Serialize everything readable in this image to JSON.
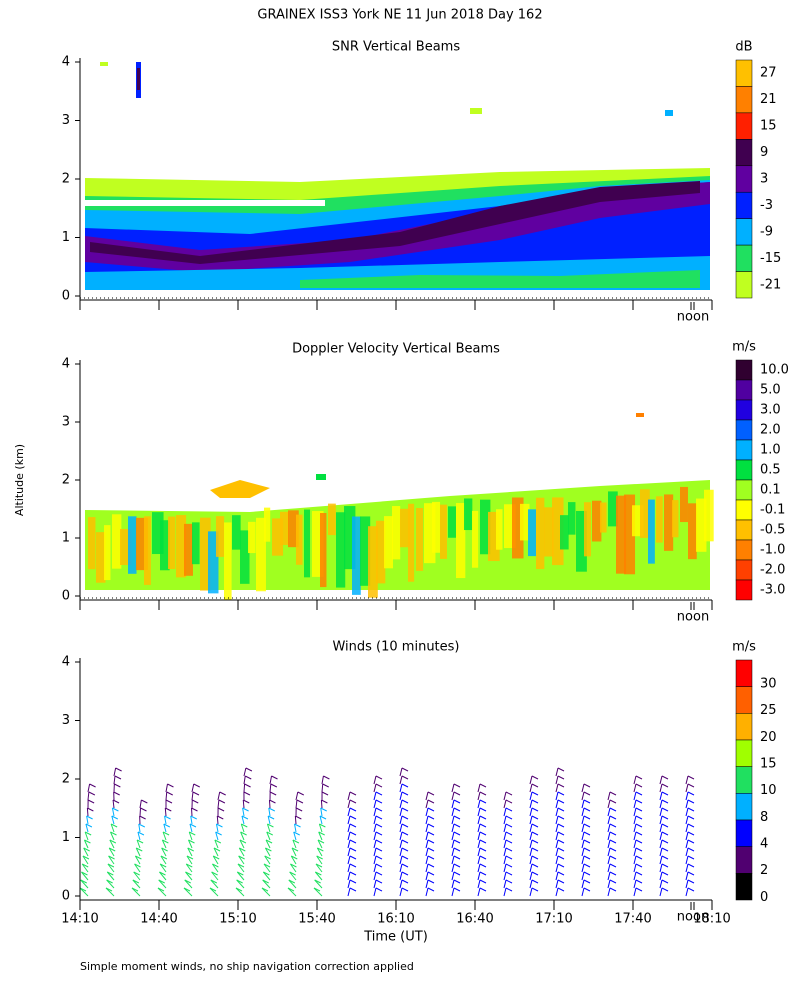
{
  "title": "GRAINEX ISS3 York NE  11 Jun 2018 Day 162",
  "xlabel": "Time (UT)",
  "ylabel": "Altitude (km)",
  "footnote": "Simple moment winds, no ship navigation correction applied",
  "chart_data": [
    {
      "type": "contour",
      "title": "SNR Vertical Beams",
      "colorbar_label": "dB",
      "levels": [
        27,
        21,
        15,
        9,
        3,
        -3,
        -9,
        -15,
        -21
      ],
      "colors": [
        "#ffc000",
        "#ff8000",
        "#ff2000",
        "#400050",
        "#6000a0",
        "#0020ff",
        "#00b0ff",
        "#20e060",
        "#c0ff20"
      ],
      "ylim": [
        0,
        4
      ],
      "yticks": [
        0,
        1,
        2,
        3,
        4
      ],
      "annotation": "noon"
    },
    {
      "type": "contour",
      "title": "Doppler Velocity Vertical Beams",
      "colorbar_label": "m/s",
      "levels": [
        {
          "value": 10,
          "label": "10.0"
        },
        {
          "value": 5,
          "label": "5.0"
        },
        {
          "value": 3,
          "label": "3.0"
        },
        {
          "value": 2,
          "label": "2.0"
        },
        {
          "value": 1,
          "label": "1.0"
        },
        0.5,
        0.1,
        -0.1,
        -0.5,
        {
          "value": -1,
          "label": "-1.0"
        },
        {
          "value": -2,
          "label": "-2.0"
        },
        {
          "value": -3,
          "label": "-3.0"
        }
      ],
      "colors": [
        "#300030",
        "#5000a0",
        "#2000e0",
        "#0060ff",
        "#00b0ff",
        "#00e040",
        "#a0ff20",
        "#ffff00",
        "#ffc000",
        "#ff8000",
        "#ff4000",
        "#ff0000"
      ],
      "ylim": [
        0,
        4
      ],
      "yticks": [
        0,
        1,
        2,
        3,
        4
      ],
      "annotation": "noon"
    },
    {
      "type": "barbs",
      "title": "Winds (10 minutes)",
      "colorbar_label": "m/s",
      "levels": [
        30,
        25,
        20,
        15,
        10,
        8,
        4,
        2,
        0
      ],
      "colors": [
        "#ff0000",
        "#ff6000",
        "#ffb000",
        "#a0ff00",
        "#20e060",
        "#00b0ff",
        "#0000ff",
        "#500070",
        "#000000"
      ],
      "ylim": [
        0,
        4
      ],
      "yticks": [
        0,
        1,
        2,
        3,
        4
      ],
      "annotation": "noon",
      "xticks": [
        "14:10",
        "14:40",
        "15:10",
        "15:40",
        "16:10",
        "16:40",
        "17:10",
        "17:40",
        "18:10"
      ]
    }
  ]
}
